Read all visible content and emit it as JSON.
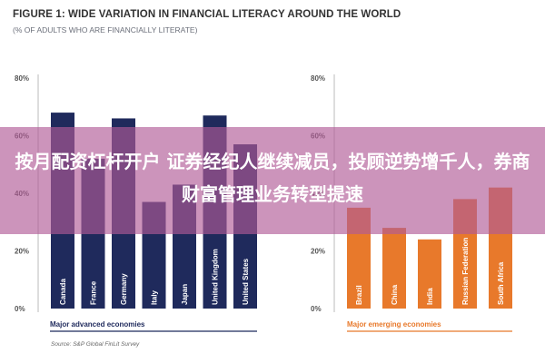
{
  "header": {
    "title": "FIGURE 1: WIDE VARIATION IN FINANCIAL LITERACY AROUND THE WORLD",
    "subtitle": "(% OF ADULTS WHO ARE FINANCIALLY LITERATE)"
  },
  "source": "Source: S&P Global FinLit Survey",
  "overlay_text": "按月配资杠杆开户 证券经纪人继续减员，投顾逆势增千人，券商财富管理业务转型提速",
  "colors": {
    "advanced": "#1f2a5c",
    "emerging": "#e8792b",
    "overlay": "#b05a96"
  },
  "chart_data": [
    {
      "type": "bar",
      "categories": [
        "Canada",
        "France",
        "Germany",
        "Italy",
        "Japan",
        "United Kingdom",
        "United States"
      ],
      "values": [
        68,
        52,
        66,
        37,
        43,
        67,
        57
      ],
      "xlabel": "Major advanced economies",
      "ylim": [
        0,
        80
      ],
      "yticks": [
        "0%",
        "20%",
        "40%",
        "60%",
        "80%"
      ]
    },
    {
      "type": "bar",
      "categories": [
        "Brazil",
        "China",
        "India",
        "Russian Federation",
        "South Africa"
      ],
      "values": [
        35,
        28,
        24,
        38,
        42
      ],
      "xlabel": "Major emerging economies",
      "ylim": [
        0,
        80
      ],
      "yticks": [
        "0%",
        "20%",
        "40%",
        "60%",
        "80%"
      ]
    }
  ]
}
